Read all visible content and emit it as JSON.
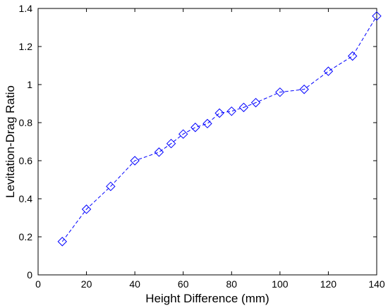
{
  "chart_data": {
    "type": "line",
    "title": "",
    "xlabel": "Height Difference (mm)",
    "ylabel": "Levitation-Drag Ratio",
    "xlim": [
      0,
      140
    ],
    "ylim": [
      0,
      1.4
    ],
    "grid": false,
    "xticks": [
      "0",
      "20",
      "40",
      "60",
      "80",
      "100",
      "120",
      "140"
    ],
    "yticks": [
      "0",
      "0.2",
      "0.4",
      "0.6",
      "0.8",
      "1",
      "1.2",
      "1.4"
    ],
    "series": [
      {
        "marker": "diamond",
        "line_style": "dashed",
        "color": "#0000ff",
        "x": [
          10,
          20,
          30,
          40,
          50,
          55,
          60,
          65,
          70,
          75,
          80,
          85,
          90,
          100,
          110,
          120,
          130,
          140
        ],
        "y": [
          0.175,
          0.345,
          0.465,
          0.6,
          0.645,
          0.69,
          0.74,
          0.775,
          0.795,
          0.85,
          0.86,
          0.88,
          0.905,
          0.96,
          0.975,
          1.07,
          1.15,
          1.36
        ]
      }
    ]
  }
}
